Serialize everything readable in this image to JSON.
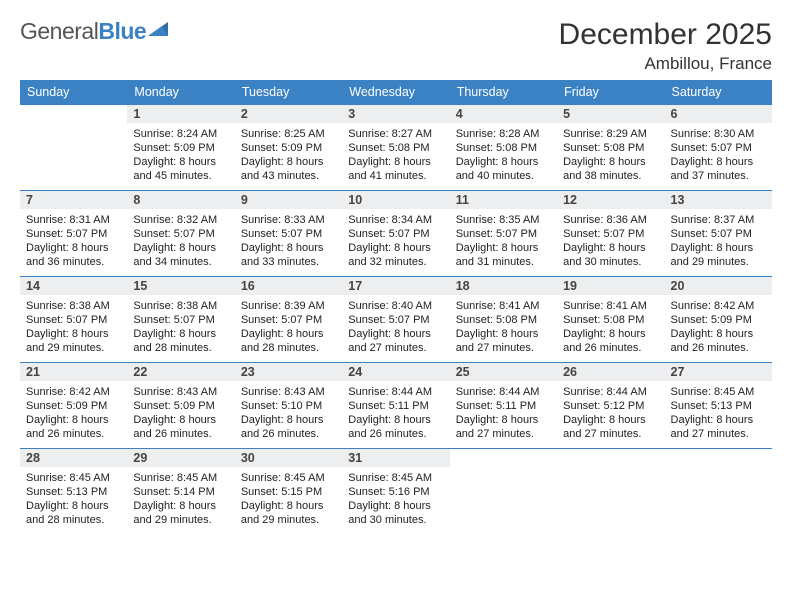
{
  "logo": {
    "word1": "General",
    "word2": "Blue",
    "color1": "#555555",
    "color2": "#3b82c4"
  },
  "title": "December 2025",
  "location": "Ambillou, France",
  "colors": {
    "bar": "#3b82c4",
    "dayNumBg": "#eceeef",
    "text": "#222222"
  },
  "dayNames": [
    "Sunday",
    "Monday",
    "Tuesday",
    "Wednesday",
    "Thursday",
    "Friday",
    "Saturday"
  ],
  "firstWeekday": 1,
  "daysInMonth": 31,
  "days": {
    "1": {
      "sunrise": "8:24 AM",
      "sunset": "5:09 PM",
      "daylight": "8 hours and 45 minutes."
    },
    "2": {
      "sunrise": "8:25 AM",
      "sunset": "5:09 PM",
      "daylight": "8 hours and 43 minutes."
    },
    "3": {
      "sunrise": "8:27 AM",
      "sunset": "5:08 PM",
      "daylight": "8 hours and 41 minutes."
    },
    "4": {
      "sunrise": "8:28 AM",
      "sunset": "5:08 PM",
      "daylight": "8 hours and 40 minutes."
    },
    "5": {
      "sunrise": "8:29 AM",
      "sunset": "5:08 PM",
      "daylight": "8 hours and 38 minutes."
    },
    "6": {
      "sunrise": "8:30 AM",
      "sunset": "5:07 PM",
      "daylight": "8 hours and 37 minutes."
    },
    "7": {
      "sunrise": "8:31 AM",
      "sunset": "5:07 PM",
      "daylight": "8 hours and 36 minutes."
    },
    "8": {
      "sunrise": "8:32 AM",
      "sunset": "5:07 PM",
      "daylight": "8 hours and 34 minutes."
    },
    "9": {
      "sunrise": "8:33 AM",
      "sunset": "5:07 PM",
      "daylight": "8 hours and 33 minutes."
    },
    "10": {
      "sunrise": "8:34 AM",
      "sunset": "5:07 PM",
      "daylight": "8 hours and 32 minutes."
    },
    "11": {
      "sunrise": "8:35 AM",
      "sunset": "5:07 PM",
      "daylight": "8 hours and 31 minutes."
    },
    "12": {
      "sunrise": "8:36 AM",
      "sunset": "5:07 PM",
      "daylight": "8 hours and 30 minutes."
    },
    "13": {
      "sunrise": "8:37 AM",
      "sunset": "5:07 PM",
      "daylight": "8 hours and 29 minutes."
    },
    "14": {
      "sunrise": "8:38 AM",
      "sunset": "5:07 PM",
      "daylight": "8 hours and 29 minutes."
    },
    "15": {
      "sunrise": "8:38 AM",
      "sunset": "5:07 PM",
      "daylight": "8 hours and 28 minutes."
    },
    "16": {
      "sunrise": "8:39 AM",
      "sunset": "5:07 PM",
      "daylight": "8 hours and 28 minutes."
    },
    "17": {
      "sunrise": "8:40 AM",
      "sunset": "5:07 PM",
      "daylight": "8 hours and 27 minutes."
    },
    "18": {
      "sunrise": "8:41 AM",
      "sunset": "5:08 PM",
      "daylight": "8 hours and 27 minutes."
    },
    "19": {
      "sunrise": "8:41 AM",
      "sunset": "5:08 PM",
      "daylight": "8 hours and 26 minutes."
    },
    "20": {
      "sunrise": "8:42 AM",
      "sunset": "5:09 PM",
      "daylight": "8 hours and 26 minutes."
    },
    "21": {
      "sunrise": "8:42 AM",
      "sunset": "5:09 PM",
      "daylight": "8 hours and 26 minutes."
    },
    "22": {
      "sunrise": "8:43 AM",
      "sunset": "5:09 PM",
      "daylight": "8 hours and 26 minutes."
    },
    "23": {
      "sunrise": "8:43 AM",
      "sunset": "5:10 PM",
      "daylight": "8 hours and 26 minutes."
    },
    "24": {
      "sunrise": "8:44 AM",
      "sunset": "5:11 PM",
      "daylight": "8 hours and 26 minutes."
    },
    "25": {
      "sunrise": "8:44 AM",
      "sunset": "5:11 PM",
      "daylight": "8 hours and 27 minutes."
    },
    "26": {
      "sunrise": "8:44 AM",
      "sunset": "5:12 PM",
      "daylight": "8 hours and 27 minutes."
    },
    "27": {
      "sunrise": "8:45 AM",
      "sunset": "5:13 PM",
      "daylight": "8 hours and 27 minutes."
    },
    "28": {
      "sunrise": "8:45 AM",
      "sunset": "5:13 PM",
      "daylight": "8 hours and 28 minutes."
    },
    "29": {
      "sunrise": "8:45 AM",
      "sunset": "5:14 PM",
      "daylight": "8 hours and 29 minutes."
    },
    "30": {
      "sunrise": "8:45 AM",
      "sunset": "5:15 PM",
      "daylight": "8 hours and 29 minutes."
    },
    "31": {
      "sunrise": "8:45 AM",
      "sunset": "5:16 PM",
      "daylight": "8 hours and 30 minutes."
    }
  },
  "labels": {
    "sunrise": "Sunrise:",
    "sunset": "Sunset:",
    "daylight": "Daylight:"
  }
}
